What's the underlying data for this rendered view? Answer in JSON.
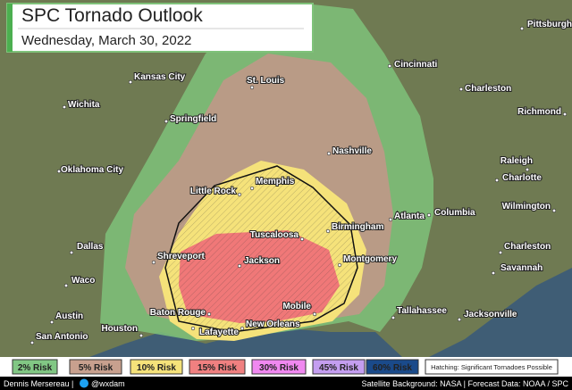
{
  "header": {
    "title": "SPC Tornado Outlook",
    "subtitle": "Wednesday, March 30, 2022"
  },
  "cities": [
    "Pittsburgh",
    "Cincinnati",
    "Kansas City",
    "St. Louis",
    "Charleston",
    "Wichita",
    "Springfield",
    "Richmond",
    "Oklahoma City",
    "Nashville",
    "Raleigh",
    "Charlotte",
    "Memphis",
    "Little Rock",
    "Atlanta",
    "Columbia",
    "Wilmington",
    "Birmingham",
    "Tuscaloosa",
    "Dallas",
    "Shreveport",
    "Charleston",
    "Jackson",
    "Montgomery",
    "Savannah",
    "Waco",
    "Mobile",
    "Tallahassee",
    "Jacksonville",
    "Baton Rouge",
    "Austin",
    "Lafayette",
    "New Orleans",
    "Houston",
    "San Antonio"
  ],
  "legend": {
    "items": [
      "2% Risk",
      "5% Risk",
      "10% Risk",
      "15% Risk",
      "30% Risk",
      "45% Risk",
      "60% Risk"
    ],
    "hatching": "Hatching: Significant Tornadoes Possible"
  },
  "footer": {
    "author": "Dennis Mersereau |",
    "handle": "@wxdam",
    "credits": "Satellite Background: NASA | Forecast Data: NOAA / SPC"
  }
}
